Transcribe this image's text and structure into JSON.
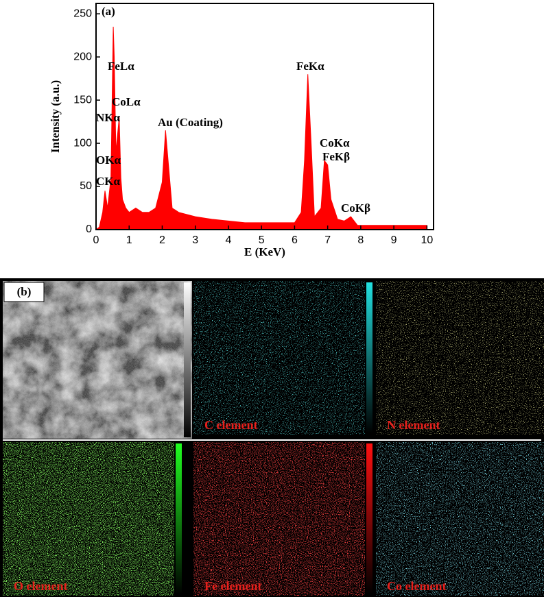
{
  "chart_data": {
    "type": "area",
    "title": "(a)",
    "x_label": "E (KeV)",
    "y_label": "Intensity (a.u.)",
    "color": "#ff0000",
    "x": [
      0,
      0.1,
      0.2,
      0.27,
      0.35,
      0.45,
      0.52,
      0.55,
      0.6,
      0.65,
      0.7,
      0.75,
      0.8,
      0.9,
      1.0,
      1.2,
      1.4,
      1.6,
      1.8,
      2.0,
      2.1,
      2.2,
      2.3,
      2.5,
      3.0,
      3.5,
      4.0,
      4.5,
      5.0,
      5.5,
      6.0,
      6.2,
      6.3,
      6.4,
      6.5,
      6.6,
      6.8,
      6.9,
      7.0,
      7.1,
      7.3,
      7.5,
      7.7,
      7.9,
      8.5,
      9.0,
      9.5,
      10.0
    ],
    "values": [
      0,
      3,
      20,
      45,
      25,
      60,
      235,
      200,
      90,
      110,
      130,
      60,
      35,
      25,
      20,
      25,
      20,
      20,
      25,
      55,
      115,
      70,
      25,
      20,
      15,
      12,
      10,
      8,
      8,
      8,
      8,
      20,
      80,
      180,
      100,
      15,
      25,
      80,
      75,
      35,
      12,
      10,
      15,
      5,
      5,
      5,
      5,
      5
    ],
    "xlim": [
      0,
      10.2
    ],
    "xticks": [
      0,
      1,
      2,
      3,
      4,
      5,
      6,
      7,
      8,
      9,
      10
    ],
    "ylim": [
      0,
      262
    ],
    "yticks": [
      0,
      50,
      100,
      150,
      200,
      250
    ],
    "annotations": [
      "FeLα",
      "CoLα",
      "NKα",
      "OKα",
      "CKα",
      "Au (Coating)",
      "FeKα",
      "CoKα",
      "FeKβ",
      "CoKβ"
    ]
  },
  "maps": {
    "label": "(b)",
    "panels": [
      "C element",
      "N element",
      "O element",
      "Fe element",
      "Co element"
    ]
  }
}
